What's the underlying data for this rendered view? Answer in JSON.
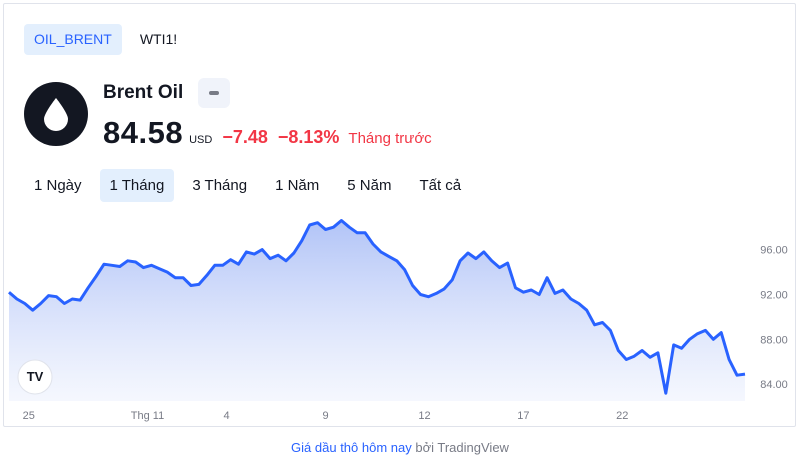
{
  "tabs": [
    {
      "label": "OIL_BRENT",
      "active": true
    },
    {
      "label": "WTI1!",
      "active": false
    }
  ],
  "instrument": {
    "logo_icon": "oil-drop-icon",
    "name": "Brent Oil",
    "price": "84.58",
    "currency": "USD",
    "change": "−7.48",
    "change_percent": "−8.13%",
    "period": "Tháng trước",
    "change_color": "#f23645"
  },
  "ranges": [
    {
      "label": "1 Ngày",
      "active": false
    },
    {
      "label": "1 Tháng",
      "active": true
    },
    {
      "label": "3 Tháng",
      "active": false
    },
    {
      "label": "1 Năm",
      "active": false
    },
    {
      "label": "5 Năm",
      "active": false
    },
    {
      "label": "Tất cả",
      "active": false
    }
  ],
  "chart_data": {
    "type": "area",
    "x_tick_labels": [
      "25",
      "Thg 11",
      "4",
      "9",
      "12",
      "17",
      "22"
    ],
    "y_tick_labels": [
      "96.00",
      "92.00",
      "88.00",
      "84.00"
    ],
    "y_ticks": [
      96,
      92,
      88,
      84
    ],
    "ylim": [
      82.5,
      99
    ],
    "line_color": "#2962ff",
    "fill_top_color": "#a9bdf6",
    "fill_bottom_color": "#eef2fd",
    "x_ticks_pos": [
      0.5,
      3.5,
      5.5,
      8,
      10.5,
      13,
      15.5
    ],
    "xlim": [
      0,
      18.5
    ],
    "series": [
      {
        "values": [
          [
            0,
            92.2
          ],
          [
            0.2,
            91.6
          ],
          [
            0.4,
            91.2
          ],
          [
            0.6,
            90.6
          ],
          [
            0.8,
            91.2
          ],
          [
            1.0,
            91.9
          ],
          [
            1.2,
            91.8
          ],
          [
            1.4,
            91.2
          ],
          [
            1.6,
            91.6
          ],
          [
            1.8,
            91.5
          ],
          [
            2.0,
            92.6
          ],
          [
            2.2,
            93.6
          ],
          [
            2.4,
            94.7
          ],
          [
            2.6,
            94.6
          ],
          [
            2.8,
            94.5
          ],
          [
            3.0,
            95.0
          ],
          [
            3.2,
            94.9
          ],
          [
            3.4,
            94.4
          ],
          [
            3.6,
            94.6
          ],
          [
            3.8,
            94.3
          ],
          [
            4.0,
            94.0
          ],
          [
            4.2,
            93.5
          ],
          [
            4.4,
            93.5
          ],
          [
            4.6,
            92.8
          ],
          [
            4.8,
            92.9
          ],
          [
            5.0,
            93.7
          ],
          [
            5.2,
            94.6
          ],
          [
            5.4,
            94.6
          ],
          [
            5.6,
            95.1
          ],
          [
            5.8,
            94.7
          ],
          [
            6.0,
            95.8
          ],
          [
            6.2,
            95.6
          ],
          [
            6.4,
            96.0
          ],
          [
            6.6,
            95.2
          ],
          [
            6.8,
            95.5
          ],
          [
            7.0,
            95.0
          ],
          [
            7.2,
            95.7
          ],
          [
            7.4,
            96.8
          ],
          [
            7.6,
            98.2
          ],
          [
            7.8,
            98.4
          ],
          [
            8.0,
            97.8
          ],
          [
            8.2,
            98.0
          ],
          [
            8.4,
            98.6
          ],
          [
            8.6,
            98.0
          ],
          [
            8.8,
            97.5
          ],
          [
            9.0,
            97.5
          ],
          [
            9.2,
            96.5
          ],
          [
            9.4,
            95.8
          ],
          [
            9.6,
            95.4
          ],
          [
            9.8,
            95.0
          ],
          [
            10.0,
            94.2
          ],
          [
            10.2,
            92.8
          ],
          [
            10.4,
            92.0
          ],
          [
            10.6,
            91.8
          ],
          [
            10.8,
            92.1
          ],
          [
            11.0,
            92.5
          ],
          [
            11.2,
            93.3
          ],
          [
            11.4,
            95.0
          ],
          [
            11.6,
            95.7
          ],
          [
            11.8,
            95.2
          ],
          [
            12.0,
            95.8
          ],
          [
            12.2,
            95.0
          ],
          [
            12.4,
            94.4
          ],
          [
            12.6,
            94.8
          ],
          [
            12.8,
            92.6
          ],
          [
            13.0,
            92.2
          ],
          [
            13.2,
            92.4
          ],
          [
            13.4,
            92.0
          ],
          [
            13.6,
            93.5
          ],
          [
            13.8,
            92.1
          ],
          [
            14.0,
            92.4
          ],
          [
            14.2,
            91.6
          ],
          [
            14.4,
            91.2
          ],
          [
            14.6,
            90.6
          ],
          [
            14.8,
            89.3
          ],
          [
            15.0,
            89.5
          ],
          [
            15.2,
            88.8
          ],
          [
            15.4,
            87.0
          ],
          [
            15.6,
            86.2
          ],
          [
            15.8,
            86.5
          ],
          [
            16.0,
            87.0
          ],
          [
            16.2,
            86.4
          ],
          [
            16.4,
            86.8
          ],
          [
            16.6,
            83.2
          ],
          [
            16.8,
            87.5
          ],
          [
            17.0,
            87.2
          ],
          [
            17.2,
            88.0
          ],
          [
            17.4,
            88.5
          ],
          [
            17.6,
            88.8
          ],
          [
            17.8,
            88.0
          ],
          [
            18.0,
            88.6
          ],
          [
            18.2,
            86.2
          ],
          [
            18.4,
            84.8
          ],
          [
            18.6,
            84.9
          ]
        ]
      }
    ]
  },
  "tv_logo": "TV",
  "attribution": {
    "link_text": "Giá dầu thô hôm nay",
    "suffix": "bởi TradingView"
  }
}
